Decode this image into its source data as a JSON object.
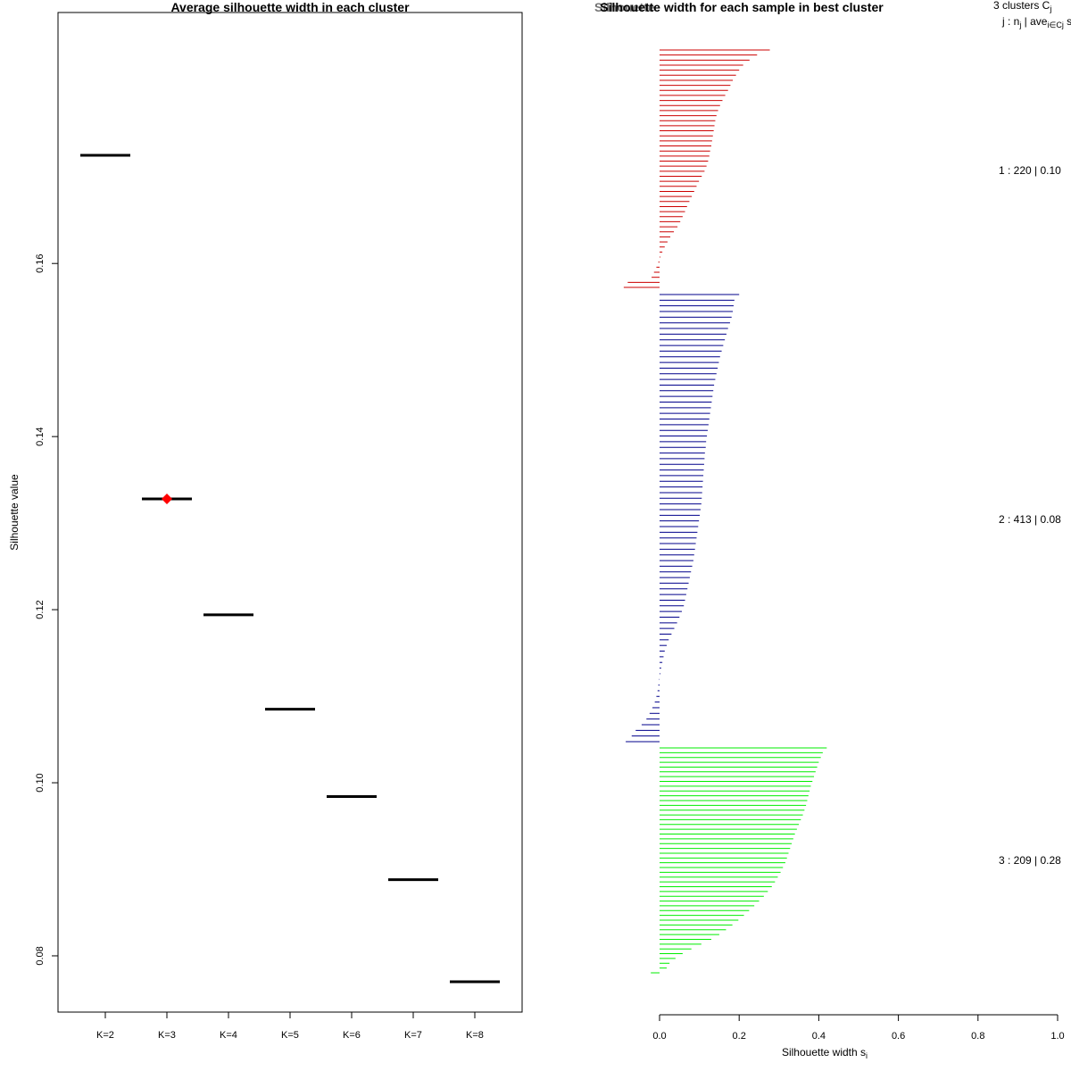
{
  "chart_data": [
    {
      "type": "scatter",
      "title": "Average silhouette width in each cluster",
      "xlabel": "",
      "ylabel": "Silhouette value",
      "categories": [
        "K=2",
        "K=3",
        "K=4",
        "K=5",
        "K=6",
        "K=7",
        "K=8"
      ],
      "values": [
        0.1725,
        0.1328,
        0.1194,
        0.1085,
        0.0984,
        0.0888,
        0.077
      ],
      "highlight_index": 1,
      "highlight_color": "#ff0000",
      "yticks": [
        "0.08",
        "0.10",
        "0.12",
        "0.14",
        "0.16"
      ],
      "ytick_values": [
        0.08,
        0.1,
        0.12,
        0.14,
        0.16
      ],
      "ylim": [
        0.0735,
        0.189
      ]
    },
    {
      "type": "bar",
      "orientation": "horizontal",
      "title": "Silhouette width for each sample in best cluster",
      "title_overlap": "Silhouette",
      "xlabel": "Silhouette width s",
      "xlabel_sub": "i",
      "xticks": [
        "0.0",
        "0.2",
        "0.4",
        "0.6",
        "0.8",
        "1.0"
      ],
      "xtick_values": [
        0,
        0.2,
        0.4,
        0.6,
        0.8,
        1.0
      ],
      "xlim": [
        0,
        1.0
      ],
      "header": {
        "line1": "3 clusters C",
        "line1_sub": "j",
        "line2_a": "j : n",
        "line2_sub1": "j",
        "line2_b": " | ave",
        "line2_sub2": "i∈Cj",
        "line2_c": " s"
      },
      "series": [
        {
          "name": "1",
          "color": "#cc0000",
          "n": 220,
          "label": "1 :  220  |  0.10",
          "widths": [
            0.277,
            0.245,
            0.226,
            0.21,
            0.2,
            0.192,
            0.184,
            0.178,
            0.172,
            0.165,
            0.158,
            0.152,
            0.147,
            0.143,
            0.14,
            0.138,
            0.136,
            0.134,
            0.132,
            0.13,
            0.127,
            0.125,
            0.122,
            0.118,
            0.113,
            0.106,
            0.099,
            0.093,
            0.087,
            0.081,
            0.075,
            0.069,
            0.064,
            0.058,
            0.052,
            0.045,
            0.036,
            0.027,
            0.02,
            0.013,
            0.007,
            0.002,
            -0.003,
            -0.008,
            -0.014,
            -0.02,
            -0.08,
            -0.09
          ]
        },
        {
          "name": "2",
          "color": "#00008b",
          "n": 413,
          "label": "2 :  413  |  0.08",
          "widths": [
            0.2,
            0.188,
            0.186,
            0.184,
            0.181,
            0.177,
            0.172,
            0.168,
            0.164,
            0.16,
            0.156,
            0.152,
            0.149,
            0.146,
            0.143,
            0.14,
            0.137,
            0.135,
            0.133,
            0.131,
            0.129,
            0.127,
            0.125,
            0.123,
            0.121,
            0.119,
            0.117,
            0.116,
            0.114,
            0.113,
            0.112,
            0.111,
            0.11,
            0.109,
            0.108,
            0.107,
            0.106,
            0.105,
            0.103,
            0.101,
            0.099,
            0.097,
            0.095,
            0.093,
            0.091,
            0.089,
            0.087,
            0.085,
            0.082,
            0.079,
            0.076,
            0.073,
            0.07,
            0.067,
            0.064,
            0.061,
            0.056,
            0.05,
            0.044,
            0.037,
            0.03,
            0.023,
            0.018,
            0.013,
            0.01,
            0.007,
            0.004,
            0.002,
            -0.001,
            -0.003,
            -0.005,
            -0.008,
            -0.012,
            -0.018,
            -0.025,
            -0.033,
            -0.045,
            -0.06,
            -0.07,
            -0.085
          ]
        },
        {
          "name": "3",
          "color": "#00ee00",
          "n": 209,
          "label": "3 :  209  |  0.28",
          "widths": [
            0.42,
            0.41,
            0.405,
            0.4,
            0.396,
            0.392,
            0.388,
            0.384,
            0.38,
            0.377,
            0.374,
            0.371,
            0.368,
            0.364,
            0.36,
            0.355,
            0.35,
            0.345,
            0.34,
            0.336,
            0.332,
            0.328,
            0.324,
            0.32,
            0.316,
            0.31,
            0.304,
            0.297,
            0.29,
            0.282,
            0.272,
            0.262,
            0.25,
            0.238,
            0.225,
            0.212,
            0.198,
            0.183,
            0.167,
            0.15,
            0.13,
            0.105,
            0.08,
            0.058,
            0.04,
            0.025,
            0.018,
            -0.022
          ]
        }
      ]
    }
  ]
}
